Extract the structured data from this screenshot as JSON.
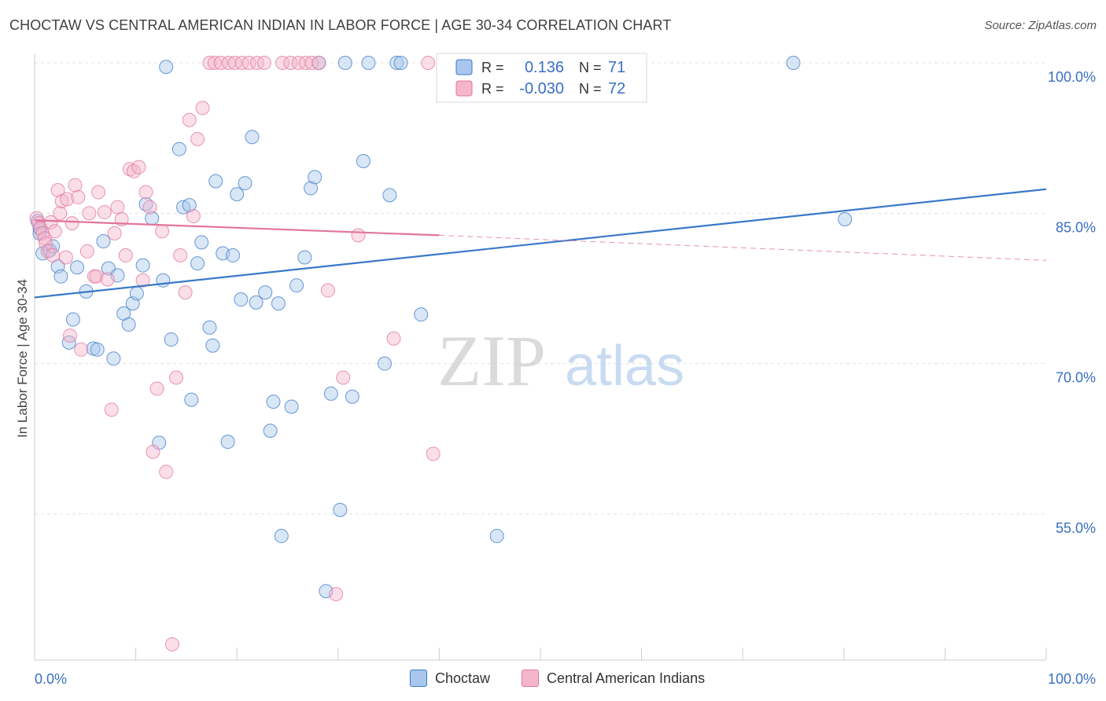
{
  "title": "CHOCTAW VS CENTRAL AMERICAN INDIAN IN LABOR FORCE | AGE 30-34 CORRELATION CHART",
  "source": "Source: ZipAtlas.com",
  "watermark": {
    "zip": "ZIP",
    "atlas": "atlas"
  },
  "colors": {
    "blue": "#3a78c9",
    "blue_fill": "#a9c7ec",
    "pink": "#e3749c",
    "pink_fill": "#f5b6cb",
    "axis_text": "#3a6fc4",
    "grid": "#e0e0e0"
  },
  "legend_top": [
    {
      "r_label": "R =",
      "r_value": "0.136",
      "n_label": "N =",
      "n_value": "71"
    },
    {
      "r_label": "R =",
      "r_value": "-0.030",
      "n_label": "N =",
      "n_value": "72"
    }
  ],
  "chart_data": {
    "type": "scatter",
    "title": "CHOCTAW VS CENTRAL AMERICAN INDIAN IN LABOR FORCE | AGE 30-34 CORRELATION CHART",
    "xlabel": "",
    "ylabel": "In Labor Force | Age 30-34",
    "xlim": [
      0,
      100
    ],
    "ylim": [
      42,
      102
    ],
    "x_tick_labels": [
      "0.0%",
      "100.0%"
    ],
    "y_ticks": [
      55,
      70,
      85,
      100
    ],
    "y_tick_labels": [
      "55.0%",
      "70.0%",
      "85.0%",
      "100.0%"
    ],
    "grid": true,
    "legend_position": "top-center",
    "series": [
      {
        "name": "Choctaw",
        "color": "#3a78c9",
        "R": 0.136,
        "N": 71,
        "trend": {
          "x": [
            0,
            100
          ],
          "y": [
            76.6,
            87.4
          ]
        },
        "points": [
          [
            0.3,
            84.2
          ],
          [
            0.5,
            83.5
          ],
          [
            0.5,
            83.0
          ],
          [
            0.8,
            81.0
          ],
          [
            1.5,
            81.3
          ],
          [
            1.8,
            81.7
          ],
          [
            2.3,
            79.7
          ],
          [
            2.6,
            78.7
          ],
          [
            3.4,
            72.1
          ],
          [
            3.8,
            74.4
          ],
          [
            4.2,
            79.6
          ],
          [
            5.1,
            77.2
          ],
          [
            5.8,
            71.5
          ],
          [
            6.2,
            71.4
          ],
          [
            6.8,
            82.2
          ],
          [
            7.3,
            79.5
          ],
          [
            7.8,
            70.5
          ],
          [
            8.2,
            78.8
          ],
          [
            8.8,
            75.0
          ],
          [
            9.3,
            73.9
          ],
          [
            9.7,
            76.0
          ],
          [
            10.1,
            77.0
          ],
          [
            10.7,
            79.8
          ],
          [
            11.0,
            85.9
          ],
          [
            11.6,
            84.5
          ],
          [
            12.3,
            62.1
          ],
          [
            12.7,
            78.3
          ],
          [
            13.0,
            99.6
          ],
          [
            13.5,
            72.4
          ],
          [
            14.3,
            91.4
          ],
          [
            14.7,
            85.6
          ],
          [
            15.3,
            85.8
          ],
          [
            15.5,
            66.4
          ],
          [
            16.1,
            80.0
          ],
          [
            16.5,
            82.1
          ],
          [
            17.3,
            73.6
          ],
          [
            17.6,
            71.8
          ],
          [
            17.9,
            88.2
          ],
          [
            18.6,
            81.0
          ],
          [
            19.1,
            62.2
          ],
          [
            19.6,
            80.8
          ],
          [
            20.0,
            86.9
          ],
          [
            20.4,
            76.4
          ],
          [
            20.8,
            88.0
          ],
          [
            21.5,
            92.6
          ],
          [
            21.9,
            76.1
          ],
          [
            22.8,
            77.1
          ],
          [
            23.3,
            63.3
          ],
          [
            23.6,
            66.2
          ],
          [
            24.1,
            76.0
          ],
          [
            24.4,
            52.8
          ],
          [
            25.4,
            65.7
          ],
          [
            25.9,
            77.8
          ],
          [
            26.7,
            80.6
          ],
          [
            27.3,
            87.5
          ],
          [
            27.7,
            88.6
          ],
          [
            28.1,
            100.0
          ],
          [
            28.8,
            47.3
          ],
          [
            29.3,
            67.0
          ],
          [
            30.2,
            55.4
          ],
          [
            30.7,
            100.0
          ],
          [
            31.4,
            66.7
          ],
          [
            32.5,
            90.2
          ],
          [
            33.0,
            100.0
          ],
          [
            34.6,
            70.0
          ],
          [
            35.1,
            86.8
          ],
          [
            35.8,
            100.0
          ],
          [
            36.2,
            100.0
          ],
          [
            38.2,
            74.9
          ],
          [
            45.7,
            52.8
          ],
          [
            75.0,
            100.0
          ],
          [
            80.1,
            84.4
          ]
        ]
      },
      {
        "name": "Central American Indians",
        "color": "#e3749c",
        "R": -0.03,
        "N": 72,
        "trend": {
          "x": [
            0,
            40
          ],
          "y": [
            84.3,
            82.8
          ],
          "dashed_x": [
            40,
            100
          ],
          "dashed_y": [
            82.8,
            80.3
          ]
        },
        "points": [
          [
            0.2,
            84.5
          ],
          [
            0.4,
            84.0
          ],
          [
            0.6,
            83.5
          ],
          [
            0.8,
            83.0
          ],
          [
            1.0,
            82.5
          ],
          [
            1.1,
            82.0
          ],
          [
            1.3,
            81.2
          ],
          [
            1.6,
            84.1
          ],
          [
            1.8,
            80.8
          ],
          [
            2.0,
            83.2
          ],
          [
            2.3,
            87.3
          ],
          [
            2.5,
            85.0
          ],
          [
            2.7,
            86.2
          ],
          [
            3.1,
            80.6
          ],
          [
            3.2,
            86.4
          ],
          [
            3.5,
            72.8
          ],
          [
            3.7,
            84.0
          ],
          [
            4.0,
            87.8
          ],
          [
            4.3,
            86.6
          ],
          [
            4.6,
            71.4
          ],
          [
            5.2,
            81.2
          ],
          [
            5.4,
            85.0
          ],
          [
            5.9,
            78.7
          ],
          [
            6.1,
            78.7
          ],
          [
            6.3,
            87.1
          ],
          [
            6.9,
            85.1
          ],
          [
            7.2,
            78.4
          ],
          [
            7.6,
            65.4
          ],
          [
            7.9,
            83.0
          ],
          [
            8.2,
            85.6
          ],
          [
            8.6,
            84.4
          ],
          [
            9.0,
            80.8
          ],
          [
            9.4,
            89.4
          ],
          [
            9.8,
            89.2
          ],
          [
            10.3,
            89.6
          ],
          [
            10.7,
            78.3
          ],
          [
            11.0,
            87.1
          ],
          [
            11.4,
            85.6
          ],
          [
            11.7,
            61.2
          ],
          [
            12.1,
            67.5
          ],
          [
            12.6,
            83.2
          ],
          [
            13.0,
            59.2
          ],
          [
            13.6,
            42.0
          ],
          [
            14.0,
            68.6
          ],
          [
            14.4,
            80.8
          ],
          [
            14.9,
            77.1
          ],
          [
            15.3,
            94.3
          ],
          [
            15.7,
            84.7
          ],
          [
            16.1,
            92.4
          ],
          [
            16.6,
            95.5
          ],
          [
            17.3,
            100.0
          ],
          [
            17.8,
            100.0
          ],
          [
            18.4,
            100.0
          ],
          [
            19.2,
            100.0
          ],
          [
            19.8,
            100.0
          ],
          [
            20.5,
            100.0
          ],
          [
            21.2,
            100.0
          ],
          [
            22.0,
            100.0
          ],
          [
            22.7,
            100.0
          ],
          [
            24.5,
            100.0
          ],
          [
            25.3,
            100.0
          ],
          [
            26.1,
            100.0
          ],
          [
            26.8,
            100.0
          ],
          [
            27.4,
            100.0
          ],
          [
            28.1,
            100.0
          ],
          [
            29.0,
            77.3
          ],
          [
            29.8,
            47.0
          ],
          [
            30.5,
            68.6
          ],
          [
            32.0,
            82.8
          ],
          [
            35.5,
            72.5
          ],
          [
            38.9,
            100.0
          ],
          [
            39.4,
            61.0
          ]
        ]
      }
    ]
  }
}
